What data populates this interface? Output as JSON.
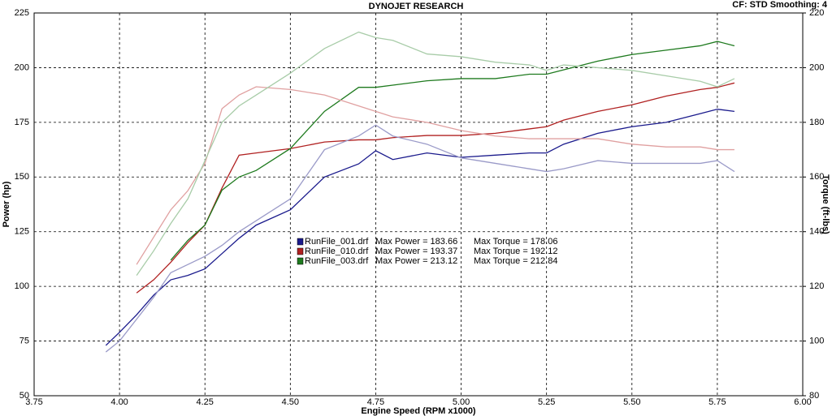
{
  "chart_data": {
    "type": "line",
    "title": "DYNOJET RESEARCH",
    "subtitle": "CF: STD  Smoothing: 4",
    "xlabel": "Engine Speed (RPM x1000)",
    "ylabel": "Power (hp)",
    "y2label": "Torque (ft-lbs)",
    "xlim": [
      3.75,
      6.0
    ],
    "xticks": [
      3.75,
      {
        "value": 4.0,
        "label": "4.00"
      },
      4.25,
      {
        "value": 4.5,
        "label": "4.50"
      },
      4.75,
      {
        "value": 5.0,
        "label": "5.00"
      },
      5.25,
      {
        "value": 5.5,
        "label": "5.50"
      },
      5.75,
      {
        "value": 6.0,
        "label": "6.00"
      }
    ],
    "ylim": [
      50,
      225
    ],
    "yticks": [
      50,
      75,
      100,
      125,
      150,
      175,
      200,
      225
    ],
    "y2lim": [
      80,
      220
    ],
    "y2ticks": [
      80,
      100,
      120,
      140,
      160,
      180,
      200,
      220
    ],
    "grid": true,
    "x": [
      3.96,
      4.0,
      4.05,
      4.1,
      4.15,
      4.2,
      4.25,
      4.3,
      4.35,
      4.4,
      4.5,
      4.6,
      4.7,
      4.75,
      4.8,
      4.9,
      5.0,
      5.1,
      5.2,
      5.25,
      5.3,
      5.4,
      5.5,
      5.6,
      5.7,
      5.75,
      5.8
    ],
    "series": [
      {
        "color": "#1a1a8c",
        "axis": "y",
        "values": [
          73,
          79,
          87,
          96,
          103,
          105,
          108,
          115,
          122,
          128,
          135,
          150,
          156,
          162,
          158,
          161,
          159,
          160,
          161,
          161,
          165,
          170,
          173,
          175,
          179,
          181,
          180
        ]
      },
      {
        "color": "#b02020",
        "axis": "y",
        "values": [
          null,
          null,
          97,
          103,
          111,
          120,
          128,
          145,
          160,
          161,
          163,
          166,
          167,
          167,
          168,
          169,
          169,
          170,
          172,
          173,
          176,
          180,
          183,
          187,
          190,
          191,
          193
        ]
      },
      {
        "color": "#1e7a1e",
        "axis": "y",
        "values": [
          null,
          null,
          null,
          null,
          112,
          121,
          128,
          144,
          150,
          153,
          163,
          180,
          191,
          191,
          192,
          194,
          195,
          195,
          197,
          197,
          199,
          203,
          206,
          208,
          210,
          212,
          210
        ]
      },
      {
        "color": "#9a9ac8",
        "axis": "y2",
        "values": [
          96,
          100,
          108,
          116,
          125,
          128,
          131,
          135,
          140,
          144,
          152,
          170,
          175,
          179,
          175,
          172,
          167,
          165,
          163,
          162,
          163,
          166,
          165,
          165,
          165,
          166,
          162
        ]
      },
      {
        "color": "#e0a0a0",
        "axis": "y2",
        "values": [
          null,
          null,
          128,
          138,
          148,
          155,
          165,
          185,
          190,
          193,
          192,
          190,
          186,
          184,
          182,
          180,
          177,
          175,
          174,
          174,
          174,
          174,
          172,
          171,
          171,
          170,
          170
        ]
      },
      {
        "color": "#a8cca8",
        "axis": "y2",
        "values": [
          null,
          null,
          124,
          133,
          143,
          152,
          166,
          180,
          186,
          190,
          198,
          207,
          213,
          211,
          210,
          205,
          204,
          202,
          201,
          199,
          201,
          200,
          199,
          197,
          195,
          193,
          196
        ]
      }
    ],
    "legend": [
      {
        "name": "RunFile_001.drf",
        "power": "Max Power = 183.66",
        "torque": "Max Torque = 178.06",
        "color": "#1a1a8c"
      },
      {
        "name": "RunFile_010.drf",
        "power": "Max Power = 193.37",
        "torque": "Max Torque = 192.12",
        "color": "#b02020"
      },
      {
        "name": "RunFile_003.drf",
        "power": "Max Power = 213.12",
        "torque": "Max Torque = 212.84",
        "color": "#1e7a1e"
      }
    ]
  }
}
